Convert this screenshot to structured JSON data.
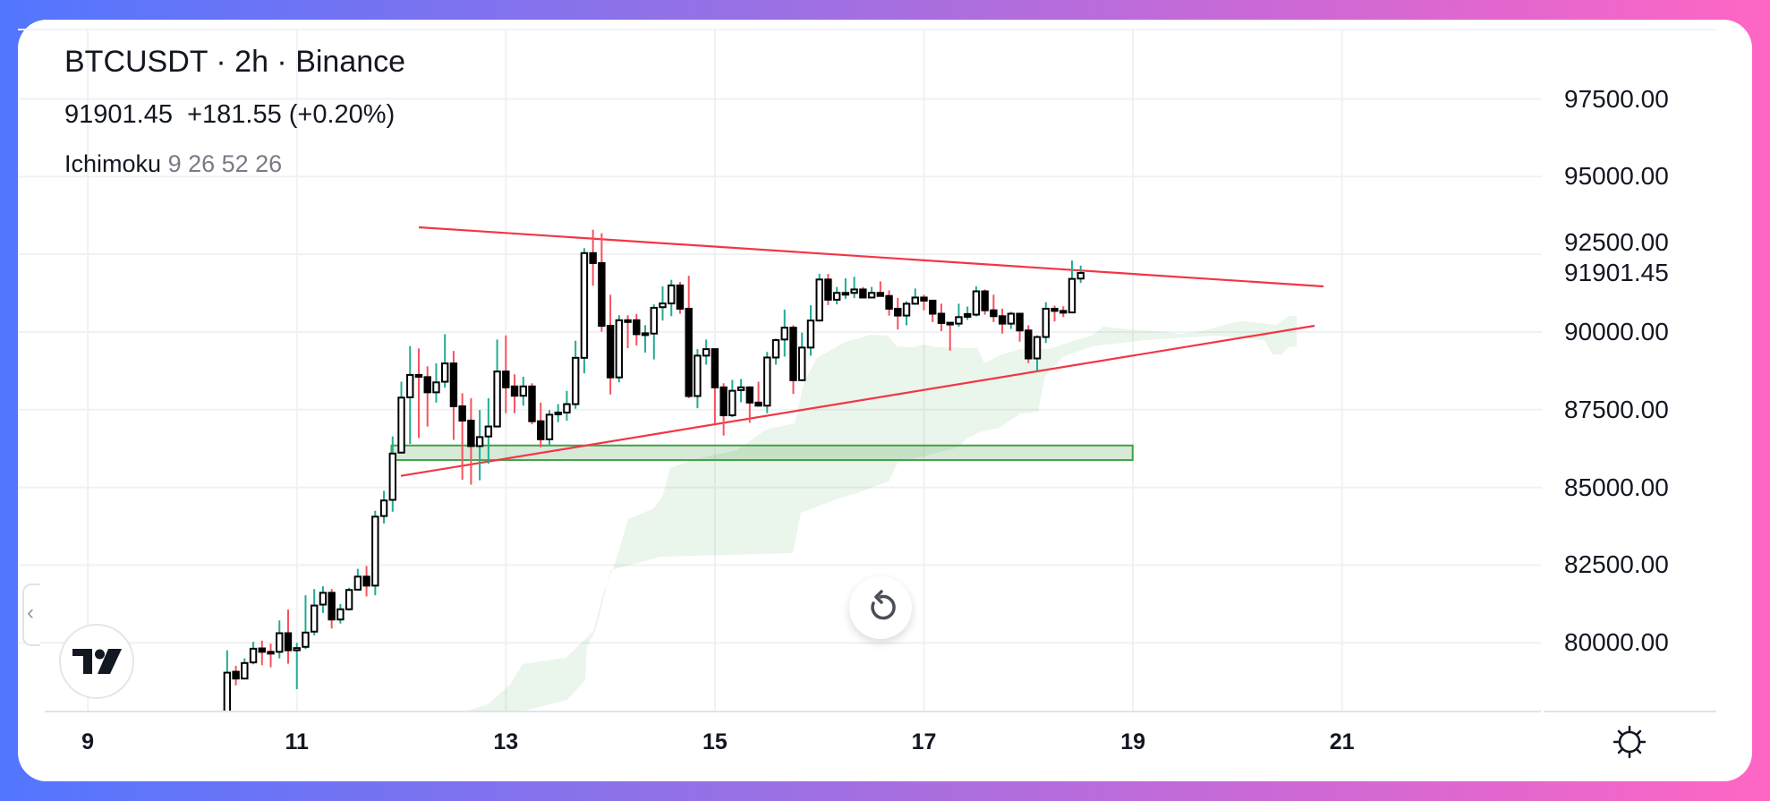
{
  "header": {
    "title": "BTCUSDT · 2h · Binance",
    "quote": "91901.45  +181.55 (+0.20%)",
    "indicator_name": "Ichimoku",
    "indicator_params": "9 26 52 26"
  },
  "controls": {
    "reset_icon": "rotate-ccw-icon",
    "settings_icon": "gear-icon",
    "collapse_icon": "chevron-left-icon",
    "logo": "TV"
  },
  "colors": {
    "up_wick": "#22ab94",
    "down_wick": "#f7525f",
    "trendline": "#f23645",
    "zone_fill": "rgba(67,160,71,0.22)",
    "zone_border": "#43a047",
    "cloud_fill": "rgba(67,160,71,0.11)"
  },
  "chart_data": {
    "type": "candlestick",
    "symbol": "BTCUSDT",
    "interval": "2h",
    "first_candle_day": 10.3333,
    "xlim": [
      8.331,
      22.912
    ],
    "ylim": [
      77790,
      100050
    ],
    "x_ticks": [
      9,
      11,
      13,
      15,
      17,
      19,
      21
    ],
    "y_ticks": [
      "80000.00",
      "82500.00",
      "85000.00",
      "87500.00",
      "90000.00",
      "92500.00",
      "95000.00",
      "97500.00"
    ],
    "last_price": "91901.45",
    "grid": true,
    "candles_ohlc": [
      [
        77750,
        79760,
        77500,
        79040
      ],
      [
        79070,
        79260,
        78630,
        78850
      ],
      [
        78850,
        79500,
        78850,
        79350
      ],
      [
        79370,
        80030,
        79310,
        79810
      ],
      [
        79820,
        80070,
        79280,
        79710
      ],
      [
        79710,
        79970,
        79210,
        79690
      ],
      [
        79710,
        80720,
        79500,
        80310
      ],
      [
        80310,
        81070,
        79330,
        79760
      ],
      [
        79760,
        80000,
        78510,
        79830
      ],
      [
        79870,
        81530,
        79800,
        80330
      ],
      [
        80360,
        81730,
        80240,
        81200
      ],
      [
        81230,
        81820,
        80960,
        81610
      ],
      [
        81610,
        81730,
        80460,
        80750
      ],
      [
        80750,
        81250,
        80620,
        81080
      ],
      [
        81080,
        81770,
        81040,
        81700
      ],
      [
        81710,
        82380,
        81700,
        82130
      ],
      [
        82130,
        82470,
        81490,
        81840
      ],
      [
        81840,
        84250,
        81530,
        84060
      ],
      [
        84080,
        84890,
        83840,
        84580
      ],
      [
        84600,
        86640,
        84220,
        86090
      ],
      [
        86120,
        88400,
        86090,
        87890
      ],
      [
        87900,
        89550,
        86400,
        88620
      ],
      [
        88620,
        89470,
        86590,
        88560
      ],
      [
        88550,
        88900,
        86960,
        88060
      ],
      [
        88060,
        88990,
        87730,
        88380
      ],
      [
        88400,
        89930,
        88210,
        88990
      ],
      [
        88990,
        89390,
        86530,
        87610
      ],
      [
        87610,
        88030,
        85250,
        87150
      ],
      [
        87150,
        87870,
        85090,
        86330
      ],
      [
        86330,
        87490,
        85230,
        86620
      ],
      [
        86640,
        87870,
        85760,
        86960
      ],
      [
        86960,
        89760,
        86940,
        88730
      ],
      [
        88730,
        89890,
        87390,
        88220
      ],
      [
        88250,
        88640,
        87390,
        87950
      ],
      [
        87950,
        88560,
        87630,
        88250
      ],
      [
        88250,
        88350,
        87030,
        87130
      ],
      [
        87130,
        87730,
        86290,
        86550
      ],
      [
        86550,
        87490,
        86330,
        87340
      ],
      [
        87410,
        87680,
        87100,
        87360
      ],
      [
        87410,
        88110,
        87150,
        87680
      ],
      [
        87680,
        89720,
        87530,
        89170
      ],
      [
        89170,
        92700,
        88670,
        92540
      ],
      [
        92540,
        93290,
        91490,
        92220
      ],
      [
        92220,
        93180,
        90010,
        90200
      ],
      [
        90200,
        91200,
        87990,
        88540
      ],
      [
        88540,
        90540,
        88380,
        90380
      ],
      [
        90380,
        90540,
        89480,
        90360
      ],
      [
        90380,
        90580,
        89570,
        89930
      ],
      [
        89950,
        90220,
        89340,
        89960
      ],
      [
        89950,
        90890,
        89120,
        90780
      ],
      [
        90800,
        91470,
        90370,
        90920
      ],
      [
        90920,
        91680,
        90510,
        91500
      ],
      [
        91500,
        91610,
        90590,
        90750
      ],
      [
        90750,
        91810,
        87870,
        87940
      ],
      [
        87940,
        89450,
        87550,
        89240
      ],
      [
        89240,
        89760,
        88950,
        89450
      ],
      [
        89450,
        89450,
        87050,
        88220
      ],
      [
        88220,
        88350,
        86670,
        87320
      ],
      [
        87320,
        88460,
        87260,
        88110
      ],
      [
        88130,
        88490,
        87740,
        88220
      ],
      [
        88220,
        88250,
        87080,
        87730
      ],
      [
        87730,
        88400,
        87600,
        87630
      ],
      [
        87630,
        89360,
        87390,
        89180
      ],
      [
        89180,
        89790,
        88950,
        89740
      ],
      [
        89760,
        90720,
        89210,
        90140
      ],
      [
        90140,
        90220,
        88010,
        88450
      ],
      [
        88450,
        89980,
        88420,
        89500
      ],
      [
        89500,
        90860,
        89240,
        90370
      ],
      [
        90370,
        91870,
        90340,
        91690
      ],
      [
        91690,
        91870,
        90870,
        91040
      ],
      [
        91040,
        91450,
        90890,
        91260
      ],
      [
        91250,
        91730,
        91070,
        91260
      ],
      [
        91260,
        91780,
        91090,
        91370
      ],
      [
        91370,
        91450,
        91090,
        91110
      ],
      [
        91110,
        91450,
        91090,
        91260
      ],
      [
        91260,
        91630,
        91150,
        91160
      ],
      [
        91160,
        91340,
        90530,
        90750
      ],
      [
        90750,
        91100,
        90080,
        90530
      ],
      [
        90530,
        90990,
        90220,
        90910
      ],
      [
        90910,
        91400,
        90890,
        91110
      ],
      [
        91110,
        91200,
        90700,
        91010
      ],
      [
        91010,
        91040,
        90320,
        90590
      ],
      [
        90590,
        90910,
        90030,
        90290
      ],
      [
        90300,
        90300,
        89400,
        90280
      ],
      [
        90270,
        90910,
        90170,
        90480
      ],
      [
        90580,
        90820,
        90390,
        90490
      ],
      [
        90560,
        91470,
        90500,
        91310
      ],
      [
        91310,
        91370,
        90560,
        90700
      ],
      [
        90700,
        91200,
        90320,
        90510
      ],
      [
        90510,
        90750,
        89950,
        90270
      ],
      [
        90270,
        90650,
        90100,
        90590
      ],
      [
        90590,
        90610,
        89690,
        90050
      ],
      [
        90050,
        90220,
        89000,
        89150
      ],
      [
        89150,
        89890,
        88730,
        89840
      ],
      [
        89840,
        90960,
        89650,
        90750
      ],
      [
        90750,
        90850,
        90340,
        90680
      ],
      [
        90680,
        90830,
        90480,
        90630
      ],
      [
        90630,
        92300,
        90610,
        91710
      ],
      [
        91720,
        92140,
        91580,
        91901.45
      ]
    ],
    "trendlines": [
      {
        "from": [
          12.167,
          93370
        ],
        "to": [
          20.823,
          91469
        ]
      },
      {
        "from": [
          11.996,
          85372
        ],
        "to": [
          20.738,
          90202
        ]
      }
    ],
    "zone": {
      "x": [
        11.905,
        18.997
      ],
      "y": [
        85880,
        86350
      ]
    },
    "ichimoku_cloud": {
      "upper": [
        [
          12.612,
          77789
        ],
        [
          12.826,
          78019
        ],
        [
          13.04,
          78653
        ],
        [
          13.16,
          79315
        ],
        [
          13.575,
          79517
        ],
        [
          13.837,
          80381
        ],
        [
          13.927,
          81533
        ],
        [
          14.05,
          82627
        ],
        [
          14.17,
          83981
        ],
        [
          14.416,
          84326
        ],
        [
          14.504,
          84758
        ],
        [
          14.569,
          85622
        ],
        [
          14.812,
          85910
        ],
        [
          15.212,
          86198
        ],
        [
          15.486,
          86861
        ],
        [
          15.763,
          87062
        ],
        [
          15.854,
          88387
        ],
        [
          15.977,
          89165
        ],
        [
          16.251,
          89683
        ],
        [
          16.38,
          89798
        ],
        [
          16.491,
          89914
        ],
        [
          16.654,
          89885
        ],
        [
          16.739,
          89539
        ],
        [
          16.893,
          89510
        ],
        [
          16.996,
          89597
        ],
        [
          17.124,
          89510
        ],
        [
          17.509,
          89482
        ],
        [
          17.578,
          88992
        ],
        [
          17.723,
          89251
        ],
        [
          17.92,
          89453
        ],
        [
          18.203,
          89453
        ],
        [
          18.374,
          89654
        ],
        [
          18.605,
          89885
        ],
        [
          18.716,
          90173
        ],
        [
          18.947,
          90086
        ],
        [
          19.23,
          90029
        ],
        [
          19.461,
          89942
        ],
        [
          19.658,
          90029
        ],
        [
          19.975,
          90317
        ],
        [
          20.06,
          90346
        ],
        [
          20.377,
          90230
        ],
        [
          20.488,
          90518
        ],
        [
          20.566,
          90518
        ]
      ],
      "lower": [
        [
          13.147,
          77789
        ],
        [
          13.588,
          78163
        ],
        [
          13.759,
          78797
        ],
        [
          13.774,
          79862
        ],
        [
          13.862,
          80438
        ],
        [
          14.003,
          82339
        ],
        [
          14.17,
          82483
        ],
        [
          14.478,
          82771
        ],
        [
          15.746,
          82886
        ],
        [
          15.823,
          84182
        ],
        [
          16.157,
          84614
        ],
        [
          16.38,
          84845
        ],
        [
          16.663,
          85190
        ],
        [
          16.748,
          85795
        ],
        [
          16.954,
          85968
        ],
        [
          17.322,
          86285
        ],
        [
          17.408,
          86573
        ],
        [
          17.553,
          86803
        ],
        [
          17.724,
          86918
        ],
        [
          17.921,
          87379
        ],
        [
          18.092,
          87437
        ],
        [
          18.161,
          88589
        ],
        [
          18.323,
          89194
        ],
        [
          18.606,
          89539
        ],
        [
          19.119,
          89741
        ],
        [
          19.804,
          89885
        ],
        [
          20.258,
          89741
        ],
        [
          20.335,
          89280
        ],
        [
          20.42,
          89280
        ],
        [
          20.488,
          89510
        ],
        [
          20.566,
          89539
        ]
      ]
    }
  }
}
